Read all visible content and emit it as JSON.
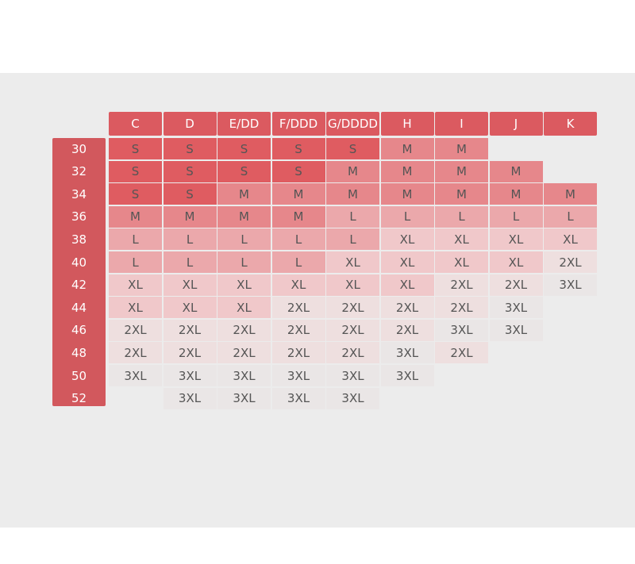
{
  "table": {
    "columns": [
      "C",
      "D",
      "E/DD",
      "F/DDD",
      "G/DDDD",
      "H",
      "I",
      "J",
      "K"
    ],
    "rows": [
      {
        "band": "30",
        "sizes": [
          "S",
          "S",
          "S",
          "S",
          "S",
          "M",
          "M",
          null,
          null
        ]
      },
      {
        "band": "32",
        "sizes": [
          "S",
          "S",
          "S",
          "S",
          "M",
          "M",
          "M",
          "M",
          null
        ]
      },
      {
        "band": "34",
        "sizes": [
          "S",
          "S",
          "M",
          "M",
          "M",
          "M",
          "M",
          "M",
          "M"
        ]
      },
      {
        "band": "36",
        "sizes": [
          "M",
          "M",
          "M",
          "M",
          "L",
          "L",
          "L",
          "L",
          "L"
        ]
      },
      {
        "band": "38",
        "sizes": [
          "L",
          "L",
          "L",
          "L",
          "L",
          "XL",
          "XL",
          "XL",
          "XL"
        ]
      },
      {
        "band": "40",
        "sizes": [
          "L",
          "L",
          "L",
          "L",
          "XL",
          "XL",
          "XL",
          "XL",
          "2XL"
        ]
      },
      {
        "band": "42",
        "sizes": [
          "XL",
          "XL",
          "XL",
          "XL",
          "XL",
          "XL",
          "2XL",
          "2XL",
          "3XL"
        ]
      },
      {
        "band": "44",
        "sizes": [
          "XL",
          "XL",
          "XL",
          "2XL",
          "2XL",
          "2XL",
          "2XL",
          "3XL",
          null
        ]
      },
      {
        "band": "46",
        "sizes": [
          "2XL",
          "2XL",
          "2XL",
          "2XL",
          "2XL",
          "2XL",
          "3XL",
          "3XL",
          null
        ]
      },
      {
        "band": "48",
        "sizes": [
          "2XL",
          "2XL",
          "2XL",
          "2XL",
          "2XL",
          "3XL",
          "2XL",
          null,
          null
        ]
      },
      {
        "band": "50",
        "sizes": [
          "3XL",
          "3XL",
          "3XL",
          "3XL",
          "3XL",
          "3XL",
          null,
          null,
          null
        ]
      },
      {
        "band": "52",
        "sizes": [
          null,
          "3XL",
          "3XL",
          "3XL",
          "3XL",
          null,
          null,
          null,
          null
        ]
      }
    ],
    "colors": {
      "S": "#df5c61",
      "M": "#e6878b",
      "L": "#eba8ab",
      "XL": "#f0c8ca",
      "2XL": "#eedfdf",
      "3XL": "#eae6e6"
    }
  }
}
